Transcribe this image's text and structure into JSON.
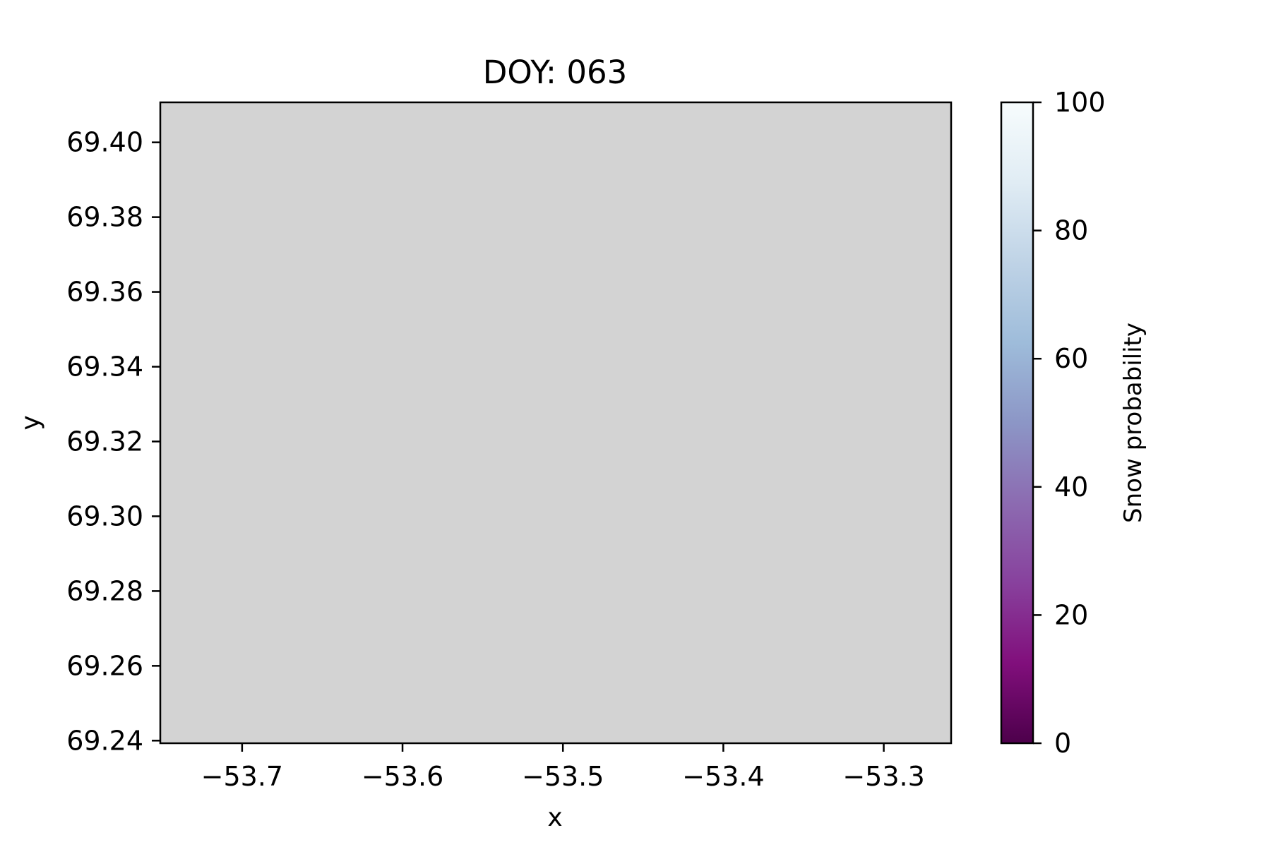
{
  "chart_data": {
    "type": "heatmap",
    "title": "DOY: 063",
    "xlabel": "x",
    "ylabel": "y",
    "xlim": [
      -53.751,
      -53.258
    ],
    "ylim": [
      69.2393,
      69.4107
    ],
    "xticks": [
      -53.7,
      -53.6,
      -53.5,
      -53.4,
      -53.3
    ],
    "xtick_labels": [
      "−53.7",
      "−53.6",
      "−53.5",
      "−53.4",
      "−53.3"
    ],
    "yticks": [
      69.24,
      69.26,
      69.28,
      69.3,
      69.32,
      69.34,
      69.36,
      69.38,
      69.4
    ],
    "ytick_labels": [
      "69.24",
      "69.26",
      "69.28",
      "69.30",
      "69.32",
      "69.34",
      "69.36",
      "69.38",
      "69.40"
    ],
    "grid": false,
    "plot_fill_color": "#d3d3d3",
    "plot_note": "no data (uniform gray)",
    "colorbar": {
      "label": "Snow probability",
      "range": [
        0,
        100
      ],
      "ticks": [
        0,
        20,
        40,
        60,
        80,
        100
      ],
      "tick_labels": [
        "0",
        "20",
        "40",
        "60",
        "80",
        "100"
      ],
      "colormap": "BuPu_r",
      "colors": [
        "#4d004b",
        "#810f7c",
        "#88419d",
        "#8c6bb1",
        "#8c96c6",
        "#9ebcda",
        "#bfd3e6",
        "#e0ecf4",
        "#f7fcfd"
      ]
    }
  }
}
